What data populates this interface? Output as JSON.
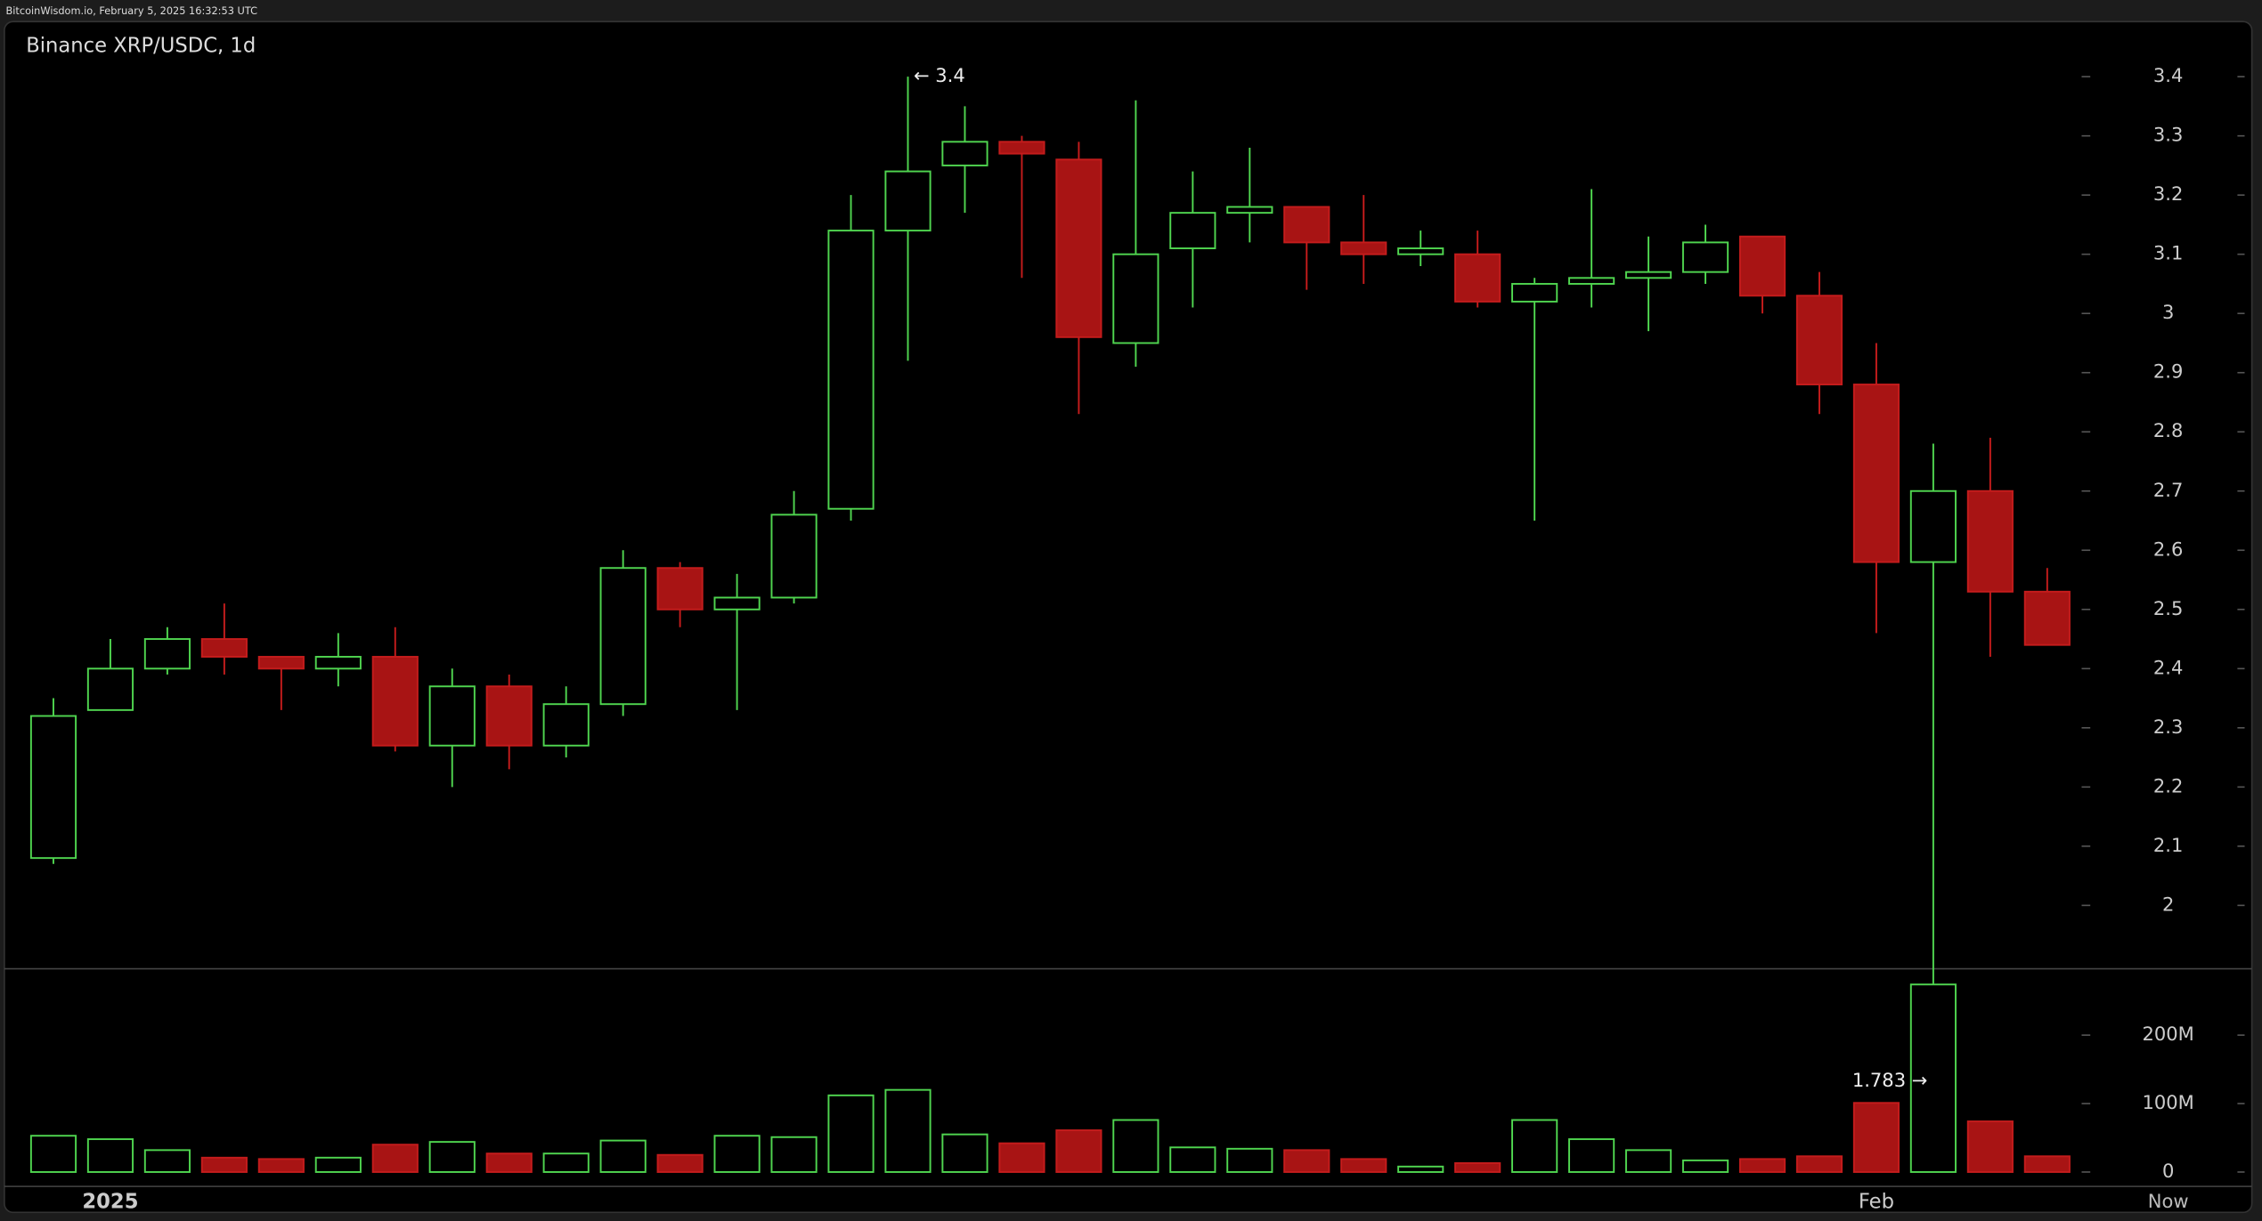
{
  "header": "BitcoinWisdom.io, February 5, 2025 16:32:53 UTC",
  "chart_data": {
    "type": "candlestick",
    "title": "Binance XRP/USDC, 1d",
    "categories": [
      null,
      "2025",
      null,
      null,
      null,
      null,
      null,
      null,
      null,
      null,
      null,
      null,
      null,
      null,
      null,
      null,
      null,
      null,
      null,
      null,
      null,
      null,
      null,
      null,
      null,
      null,
      null,
      null,
      null,
      null,
      null,
      null,
      "Feb",
      null,
      null,
      null
    ],
    "now_label": "Now",
    "open": [
      2.08,
      2.33,
      2.4,
      2.45,
      2.42,
      2.4,
      2.42,
      2.27,
      2.37,
      2.27,
      2.34,
      2.57,
      2.5,
      2.52,
      2.67,
      3.14,
      3.25,
      3.29,
      3.26,
      2.95,
      3.11,
      3.17,
      3.18,
      3.12,
      3.1,
      3.1,
      3.02,
      3.05,
      3.06,
      3.07,
      3.13,
      3.03,
      2.88,
      2.58,
      2.7,
      2.53
    ],
    "high": [
      2.35,
      2.45,
      2.47,
      2.51,
      2.42,
      2.46,
      2.47,
      2.4,
      2.39,
      2.37,
      2.6,
      2.58,
      2.56,
      2.7,
      3.2,
      3.4,
      3.35,
      3.3,
      3.29,
      3.36,
      3.24,
      3.28,
      3.18,
      3.2,
      3.14,
      3.14,
      3.06,
      3.21,
      3.13,
      3.15,
      3.13,
      3.07,
      2.95,
      2.78,
      2.79,
      2.57
    ],
    "low": [
      2.07,
      2.33,
      2.39,
      2.39,
      2.33,
      2.37,
      2.26,
      2.2,
      2.23,
      2.25,
      2.32,
      2.47,
      2.33,
      2.51,
      2.65,
      2.92,
      3.17,
      3.06,
      2.83,
      2.91,
      3.01,
      3.12,
      3.04,
      3.05,
      3.08,
      3.01,
      2.65,
      3.01,
      2.97,
      3.05,
      3.0,
      2.83,
      2.46,
      1.783,
      2.42,
      2.44
    ],
    "close": [
      2.32,
      2.4,
      2.45,
      2.42,
      2.4,
      2.42,
      2.27,
      2.37,
      2.27,
      2.34,
      2.57,
      2.5,
      2.52,
      2.66,
      3.14,
      3.24,
      3.29,
      3.27,
      2.96,
      3.1,
      3.17,
      3.18,
      3.12,
      3.1,
      3.11,
      3.02,
      3.05,
      3.06,
      3.07,
      3.12,
      3.03,
      2.88,
      2.58,
      2.7,
      2.53,
      2.44
    ],
    "volume": [
      53000000,
      48000000,
      32000000,
      21000000,
      19000000,
      21000000,
      40000000,
      44000000,
      27000000,
      27000000,
      46000000,
      25000000,
      53000000,
      51000000,
      112000000,
      120000000,
      55000000,
      42000000,
      61000000,
      76000000,
      36000000,
      34000000,
      32000000,
      19000000,
      8000000,
      13000000,
      76000000,
      48000000,
      32000000,
      17000000,
      19000000,
      23000000,
      101000000,
      274000000,
      74000000,
      23000000
    ],
    "up_color": "#4fd44f",
    "down_color": "#a81414",
    "ylim": [
      1.893,
      3.493
    ],
    "yticks": [
      2,
      2.1,
      2.2,
      2.3,
      2.4,
      2.5,
      2.6,
      2.7,
      2.8,
      2.9,
      3,
      3.1,
      3.2,
      3.3,
      3.4
    ],
    "y2lim": [
      -21000000,
      297000000
    ],
    "y2ticks": [
      {
        "value": 0,
        "label": "0"
      },
      {
        "value": 100000000,
        "label": "100M"
      },
      {
        "value": 200000000,
        "label": "200M"
      }
    ],
    "high_label": {
      "value": 3.4,
      "label": "← 3.4"
    },
    "low_label": {
      "value": 1.783,
      "label": "1.783 →"
    }
  }
}
